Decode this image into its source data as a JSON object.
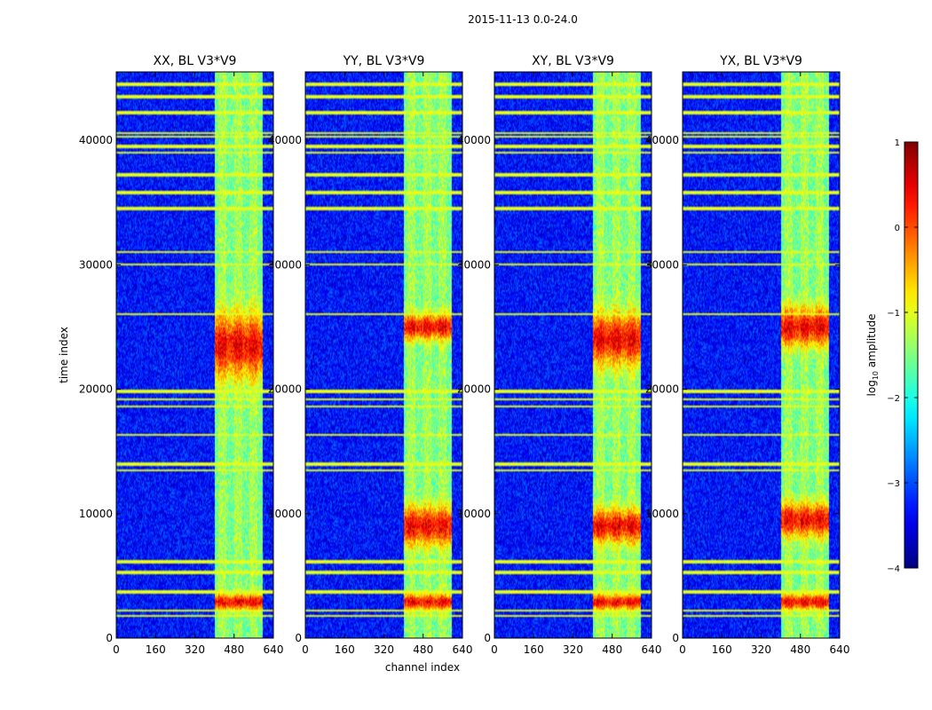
{
  "chart_data": {
    "type": "heatmap",
    "suptitle": "2015-11-13 0.0-24.0",
    "xlabel": "channel index",
    "ylabel": "time index",
    "xlim": [
      0,
      640
    ],
    "ylim": [
      0,
      45500
    ],
    "xticks": [
      0,
      160,
      320,
      480,
      640
    ],
    "xtick_labels": [
      "0",
      "160",
      "320",
      "480",
      "640"
    ],
    "yticks": [
      0,
      10000,
      20000,
      30000,
      40000
    ],
    "ytick_labels": [
      "0",
      "10000",
      "20000",
      "30000",
      "40000"
    ],
    "colormap": "jet",
    "colorbar": {
      "label_prefix": "log",
      "label_sub": "10",
      "label_suffix": " amplitude",
      "vmin": -4,
      "vmax": 1,
      "ticks": [
        1,
        0,
        -1,
        -2,
        -3,
        -4
      ],
      "tick_labels": [
        "1",
        "0",
        "−1",
        "−2",
        "−3",
        "−4"
      ]
    },
    "panels": [
      {
        "title": "XX, BL V3*V9",
        "peaks": [
          [
            23500,
            2500
          ],
          [
            2900,
            600
          ]
        ]
      },
      {
        "title": "YY, BL V3*V9",
        "peaks": [
          [
            25000,
            1000
          ],
          [
            9000,
            1500
          ],
          [
            2900,
            600
          ]
        ]
      },
      {
        "title": "XY, BL V3*V9",
        "peaks": [
          [
            24000,
            2000
          ],
          [
            9000,
            1300
          ],
          [
            2900,
            600
          ]
        ]
      },
      {
        "title": "YX, BL V3*V9",
        "peaks": [
          [
            25000,
            1500
          ],
          [
            9500,
            1300
          ],
          [
            2900,
            600
          ]
        ]
      }
    ],
    "rfi_band_channels": [
      400,
      595
    ],
    "flagged_rows_time_index": [
      1800,
      2200,
      3700,
      5300,
      6100,
      13500,
      14000,
      16300,
      18600,
      19200,
      19800,
      26000,
      30000,
      31000,
      34500,
      35800,
      37200,
      39000,
      39500,
      40300,
      40600,
      42200,
      43500,
      44500
    ],
    "background_level": -3.3,
    "band_level": -1.3
  }
}
